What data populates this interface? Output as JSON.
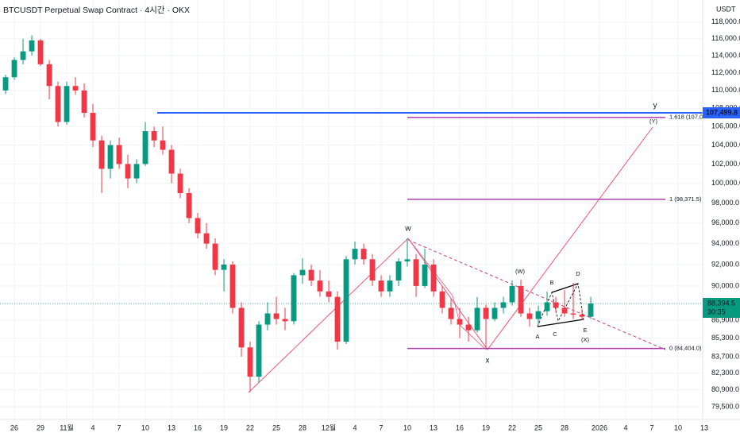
{
  "chart_data": {
    "type": "candlestick",
    "title": "BTCUSDT Perpetual Swap Contract · 4시간 · OKX",
    "currency": "USDT",
    "log_scale": true,
    "grid": true,
    "up_color": "#089981",
    "down_color": "#f23645",
    "x": [
      -1,
      0,
      1,
      2,
      3,
      4,
      5,
      6,
      7,
      8,
      9,
      10,
      11,
      12,
      13,
      14,
      15,
      16,
      17,
      18,
      19,
      20,
      21,
      22,
      23,
      24,
      25,
      26,
      27,
      28,
      29,
      30,
      31,
      32,
      33,
      34,
      35,
      36,
      37,
      38,
      39,
      40,
      41,
      42,
      43,
      44,
      45,
      46,
      47,
      48,
      49,
      50,
      51,
      52,
      53,
      54,
      55,
      56,
      57,
      58,
      59,
      60,
      61,
      62,
      63,
      64,
      65,
      66
    ],
    "open": [
      110000,
      111500,
      113500,
      114500,
      115800,
      113000,
      110500,
      106500,
      110500,
      110000,
      107500,
      104500,
      101500,
      104000,
      102000,
      100500,
      102000,
      105500,
      104500,
      103500,
      101000,
      99000,
      96500,
      95000,
      94000,
      91500,
      92000,
      88000,
      84500,
      82000,
      86500,
      87500,
      87000,
      86800,
      91000,
      91500,
      90500,
      89500,
      89000,
      85000,
      92500,
      93500,
      92500,
      90500,
      89500,
      90500,
      92300,
      92500,
      90000,
      92000,
      89500,
      88000,
      87000,
      86500,
      86000,
      88000,
      87000,
      88000,
      88500,
      90000,
      87500,
      87000,
      87700,
      88500,
      88000,
      87500,
      87400,
      87200
    ],
    "high": [
      111800,
      113800,
      116000,
      116400,
      116000,
      113500,
      111000,
      111000,
      111500,
      110800,
      108500,
      105000,
      104500,
      104800,
      103000,
      102500,
      106500,
      106000,
      106000,
      104000,
      101500,
      99500,
      97000,
      96000,
      94500,
      92500,
      92300,
      88500,
      85000,
      86800,
      88500,
      89000,
      88000,
      91200,
      92600,
      92000,
      91500,
      90500,
      89500,
      92800,
      94200,
      94000,
      93000,
      91000,
      91000,
      92600,
      94500,
      93000,
      93500,
      92500,
      90000,
      88800,
      88000,
      87200,
      89000,
      88300,
      88500,
      89000,
      90500,
      90600,
      88000,
      88200,
      89500,
      89000,
      89600,
      90300,
      87900,
      89000
    ],
    "low": [
      109600,
      111200,
      113000,
      114000,
      112800,
      109000,
      106000,
      106200,
      109500,
      107000,
      103800,
      99000,
      100500,
      101500,
      99500,
      100000,
      101800,
      103800,
      103000,
      100000,
      98500,
      96000,
      94500,
      93500,
      91000,
      89500,
      87500,
      83700,
      80700,
      81500,
      86000,
      86500,
      86000,
      86500,
      90200,
      90000,
      89000,
      88500,
      84300,
      84800,
      92000,
      92000,
      90000,
      89000,
      89000,
      90000,
      91800,
      89000,
      89800,
      89000,
      87500,
      86500,
      85300,
      85000,
      85800,
      84400,
      86800,
      87500,
      88200,
      87200,
      86300,
      86500,
      87300,
      87600,
      87200,
      87000,
      86900,
      87000
    ],
    "close": [
      111500,
      113500,
      114500,
      115800,
      113000,
      110500,
      106500,
      110500,
      110000,
      107500,
      104500,
      101500,
      104000,
      102000,
      100500,
      102000,
      105500,
      104500,
      103500,
      101000,
      99000,
      96500,
      95000,
      94000,
      91500,
      92000,
      88000,
      84500,
      82000,
      86500,
      87500,
      87000,
      86800,
      91000,
      91500,
      90500,
      89500,
      89000,
      85000,
      92500,
      93500,
      92500,
      90500,
      89500,
      90500,
      92300,
      92500,
      90000,
      92000,
      89500,
      88000,
      87000,
      86500,
      86000,
      88000,
      87000,
      88000,
      88500,
      90000,
      87500,
      87000,
      87700,
      88500,
      88000,
      87500,
      87400,
      87200,
      88394.5
    ],
    "xlim": [
      -1.64,
      83.09
    ],
    "xticks": [
      {
        "value": 0,
        "label": "26"
      },
      {
        "value": 3,
        "label": "29"
      },
      {
        "value": 6,
        "label": "11월"
      },
      {
        "value": 9,
        "label": "4"
      },
      {
        "value": 12,
        "label": "7"
      },
      {
        "value": 15,
        "label": "10"
      },
      {
        "value": 18,
        "label": "13"
      },
      {
        "value": 21,
        "label": "16"
      },
      {
        "value": 24,
        "label": "19"
      },
      {
        "value": 27,
        "label": "22"
      },
      {
        "value": 30,
        "label": "25"
      },
      {
        "value": 33,
        "label": "28"
      },
      {
        "value": 36,
        "label": "12월"
      },
      {
        "value": 39,
        "label": "4"
      },
      {
        "value": 42,
        "label": "7"
      },
      {
        "value": 45,
        "label": "10"
      },
      {
        "value": 48,
        "label": "13"
      },
      {
        "value": 51,
        "label": "16"
      },
      {
        "value": 54,
        "label": "19"
      },
      {
        "value": 57,
        "label": "22"
      },
      {
        "value": 60,
        "label": "25"
      },
      {
        "value": 63,
        "label": "28"
      },
      {
        "value": 67,
        "label": "2026"
      },
      {
        "value": 70,
        "label": "4"
      },
      {
        "value": 73,
        "label": "7"
      },
      {
        "value": 76,
        "label": "10"
      },
      {
        "value": 79,
        "label": "13"
      }
    ],
    "ylim": [
      78600,
      120700
    ],
    "yticks": [
      {
        "value": 118000,
        "label": "118,000.0"
      },
      {
        "value": 116000,
        "label": "116,000.0"
      },
      {
        "value": 114000,
        "label": "114,000.0"
      },
      {
        "value": 112000,
        "label": "112,000.0"
      },
      {
        "value": 110000,
        "label": "110,000.0"
      },
      {
        "value": 108000,
        "label": "108,000.0"
      },
      {
        "value": 106000,
        "label": "106,000.0"
      },
      {
        "value": 104000,
        "label": "104,000.0"
      },
      {
        "value": 102000,
        "label": "102,000.0"
      },
      {
        "value": 100000,
        "label": "100,000.0"
      },
      {
        "value": 98000,
        "label": "98,000.0"
      },
      {
        "value": 96000,
        "label": "96,000.0"
      },
      {
        "value": 94000,
        "label": "94,000.0"
      },
      {
        "value": 92000,
        "label": "92,000.0"
      },
      {
        "value": 90000,
        "label": "90,000.0"
      },
      {
        "value": 86900,
        "label": "86,900.0"
      },
      {
        "value": 85300,
        "label": "85,300.0"
      },
      {
        "value": 83700,
        "label": "83,700.0"
      },
      {
        "value": 82300,
        "label": "82,300.0"
      },
      {
        "value": 80900,
        "label": "80,900.0"
      },
      {
        "value": 79500,
        "label": "79,500.0"
      }
    ],
    "resistance": {
      "value": 107499.8,
      "label": "107,499.8",
      "color": "#2962ff"
    },
    "last_price": {
      "value": 88394.5,
      "label": "88,394.5",
      "countdown": "30:35",
      "color": "#089981"
    },
    "fib_levels": [
      {
        "value": 107003.4,
        "label": "1.618 (107,003.4)"
      },
      {
        "value": 98371.5,
        "label": "1 (98,371.5)"
      },
      {
        "value": 84404.0,
        "label": "0 (84,404.0)"
      }
    ],
    "fib_color": "#b03fb5",
    "wave_labels": [
      "w",
      "x",
      "y",
      "(W)",
      "(X)",
      "(Y)",
      "A",
      "B",
      "C",
      "D",
      "E"
    ]
  }
}
